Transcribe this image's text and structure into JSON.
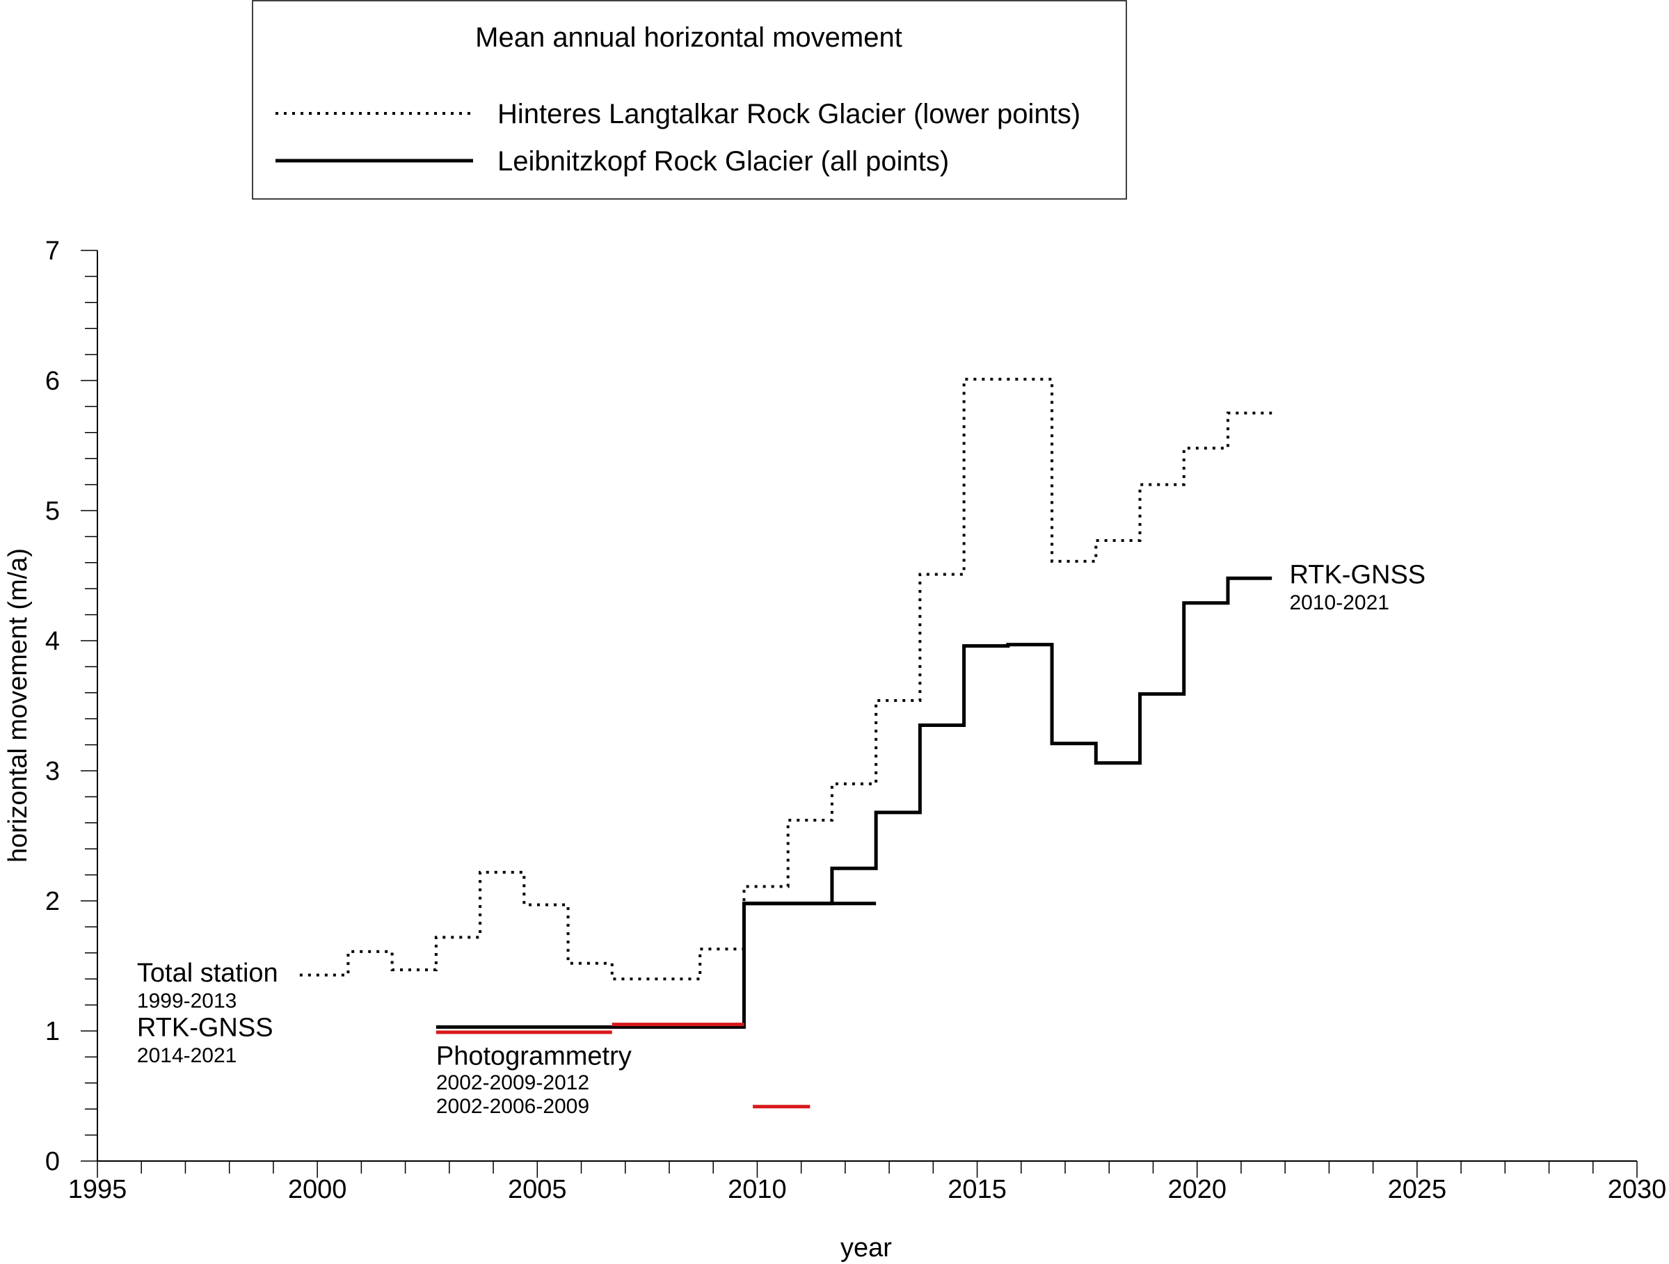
{
  "chart_data": {
    "type": "line",
    "title": "",
    "xlabel": "year",
    "ylabel": "horizontal movement (m/a)",
    "xlim": [
      1995,
      2030
    ],
    "ylim": [
      0,
      7
    ],
    "x_ticks": [
      "1995",
      "2000",
      "2005",
      "2010",
      "2015",
      "2020",
      "2025",
      "2030"
    ],
    "y_ticks": [
      "0",
      "1",
      "2",
      "3",
      "4",
      "5",
      "6",
      "7"
    ],
    "x_minor_step": 1,
    "y_minor_step": 0.2,
    "grid": false,
    "legend": {
      "title": "Mean annual horizontal movement",
      "placement": "top",
      "items": [
        {
          "label": "Hinteres Langtalkar Rock Glacier (lower points)",
          "style": "dotted",
          "color": "#000000"
        },
        {
          "label": "Leibnitzkopf Rock Glacier (all points)",
          "style": "solid",
          "color": "#000000"
        }
      ]
    },
    "series": [
      {
        "style": "dotted",
        "color": "#000000",
        "steps": [
          {
            "x0": 1999.6,
            "x1": 2000.7,
            "y": 1.43
          },
          {
            "x0": 2000.7,
            "x1": 2001.7,
            "y": 1.61
          },
          {
            "x0": 2001.7,
            "x1": 2002.7,
            "y": 1.47
          },
          {
            "x0": 2002.7,
            "x1": 2003.7,
            "y": 1.72
          },
          {
            "x0": 2003.7,
            "x1": 2004.7,
            "y": 2.22
          },
          {
            "x0": 2004.7,
            "x1": 2005.7,
            "y": 1.97
          },
          {
            "x0": 2005.7,
            "x1": 2006.7,
            "y": 1.52
          },
          {
            "x0": 2006.7,
            "x1": 2008.7,
            "y": 1.4
          },
          {
            "x0": 2008.7,
            "x1": 2009.7,
            "y": 1.63
          },
          {
            "x0": 2009.7,
            "x1": 2010.7,
            "y": 2.11
          },
          {
            "x0": 2010.7,
            "x1": 2011.7,
            "y": 2.62
          },
          {
            "x0": 2011.7,
            "x1": 2012.7,
            "y": 2.9
          },
          {
            "x0": 2012.7,
            "x1": 2013.7,
            "y": 3.54
          },
          {
            "x0": 2013.7,
            "x1": 2014.7,
            "y": 4.51
          },
          {
            "x0": 2014.7,
            "x1": 2016.7,
            "y": 6.01
          },
          {
            "x0": 2016.7,
            "x1": 2017.7,
            "y": 4.61
          },
          {
            "x0": 2017.7,
            "x1": 2018.7,
            "y": 4.77
          },
          {
            "x0": 2018.7,
            "x1": 2019.7,
            "y": 5.2
          },
          {
            "x0": 2019.7,
            "x1": 2020.7,
            "y": 5.48
          },
          {
            "x0": 2020.7,
            "x1": 2021.7,
            "y": 5.75
          }
        ]
      },
      {
        "style": "solid",
        "color": "#000000",
        "steps": [
          {
            "x0": 2002.7,
            "x1": 2009.7,
            "y": 1.03
          },
          {
            "x0": 2009.7,
            "x1": 2011.7,
            "y": 1.98
          },
          {
            "x0": 2011.7,
            "x1": 2012.7,
            "y": 2.25
          },
          {
            "x0": 2012.7,
            "x1": 2013.7,
            "y": 2.68
          },
          {
            "x0": 2013.7,
            "x1": 2014.7,
            "y": 3.35
          },
          {
            "x0": 2014.7,
            "x1": 2015.7,
            "y": 3.96
          },
          {
            "x0": 2015.7,
            "x1": 2016.7,
            "y": 3.97
          },
          {
            "x0": 2016.7,
            "x1": 2017.7,
            "y": 3.21
          },
          {
            "x0": 2017.7,
            "x1": 2018.7,
            "y": 3.06
          },
          {
            "x0": 2018.7,
            "x1": 2019.7,
            "y": 3.59
          },
          {
            "x0": 2019.7,
            "x1": 2020.7,
            "y": 4.29
          },
          {
            "x0": 2020.7,
            "x1": 2021.7,
            "y": 4.48
          }
        ]
      },
      {
        "style": "solid",
        "color": "#000000",
        "segments": [
          {
            "x0": 2009.7,
            "x1": 2012.7,
            "y": 1.98
          }
        ]
      },
      {
        "style": "solid",
        "color": "#d7191c",
        "segments": [
          {
            "x0": 2002.7,
            "x1": 2006.7,
            "y": 0.99
          },
          {
            "x0": 2006.7,
            "x1": 2009.7,
            "y": 1.05
          }
        ]
      }
    ],
    "annotations": [
      {
        "id": "ann-total-station",
        "text": "Total station",
        "x": 1995.9,
        "y": 1.38,
        "size": "large"
      },
      {
        "id": "ann-total-station-years",
        "text": "1999-2013",
        "x": 1995.9,
        "y": 1.18,
        "size": "small"
      },
      {
        "id": "ann-rtk-left",
        "text": "RTK-GNSS",
        "x": 1995.9,
        "y": 0.96,
        "size": "large"
      },
      {
        "id": "ann-rtk-left-years",
        "text": "2014-2021",
        "x": 1995.9,
        "y": 0.76,
        "size": "small"
      },
      {
        "id": "ann-photogrammetry",
        "text": "Photogrammetry",
        "x": 2002.7,
        "y": 0.74,
        "size": "large"
      },
      {
        "id": "ann-photo-years-1",
        "text": "2002-2009-2012",
        "x": 2002.7,
        "y": 0.55,
        "size": "small"
      },
      {
        "id": "ann-photo-years-2",
        "text": "2002-2006-2009",
        "x": 2002.7,
        "y": 0.37,
        "size": "small",
        "swatch": {
          "color": "#d7191c",
          "x0": 2009.9,
          "x1": 2011.2
        }
      },
      {
        "id": "ann-rtk-right",
        "text": "RTK-GNSS",
        "x": 2022.1,
        "y": 4.44,
        "size": "large"
      },
      {
        "id": "ann-rtk-right-years",
        "text": "2010-2021",
        "x": 2022.1,
        "y": 4.24,
        "size": "small"
      }
    ]
  }
}
